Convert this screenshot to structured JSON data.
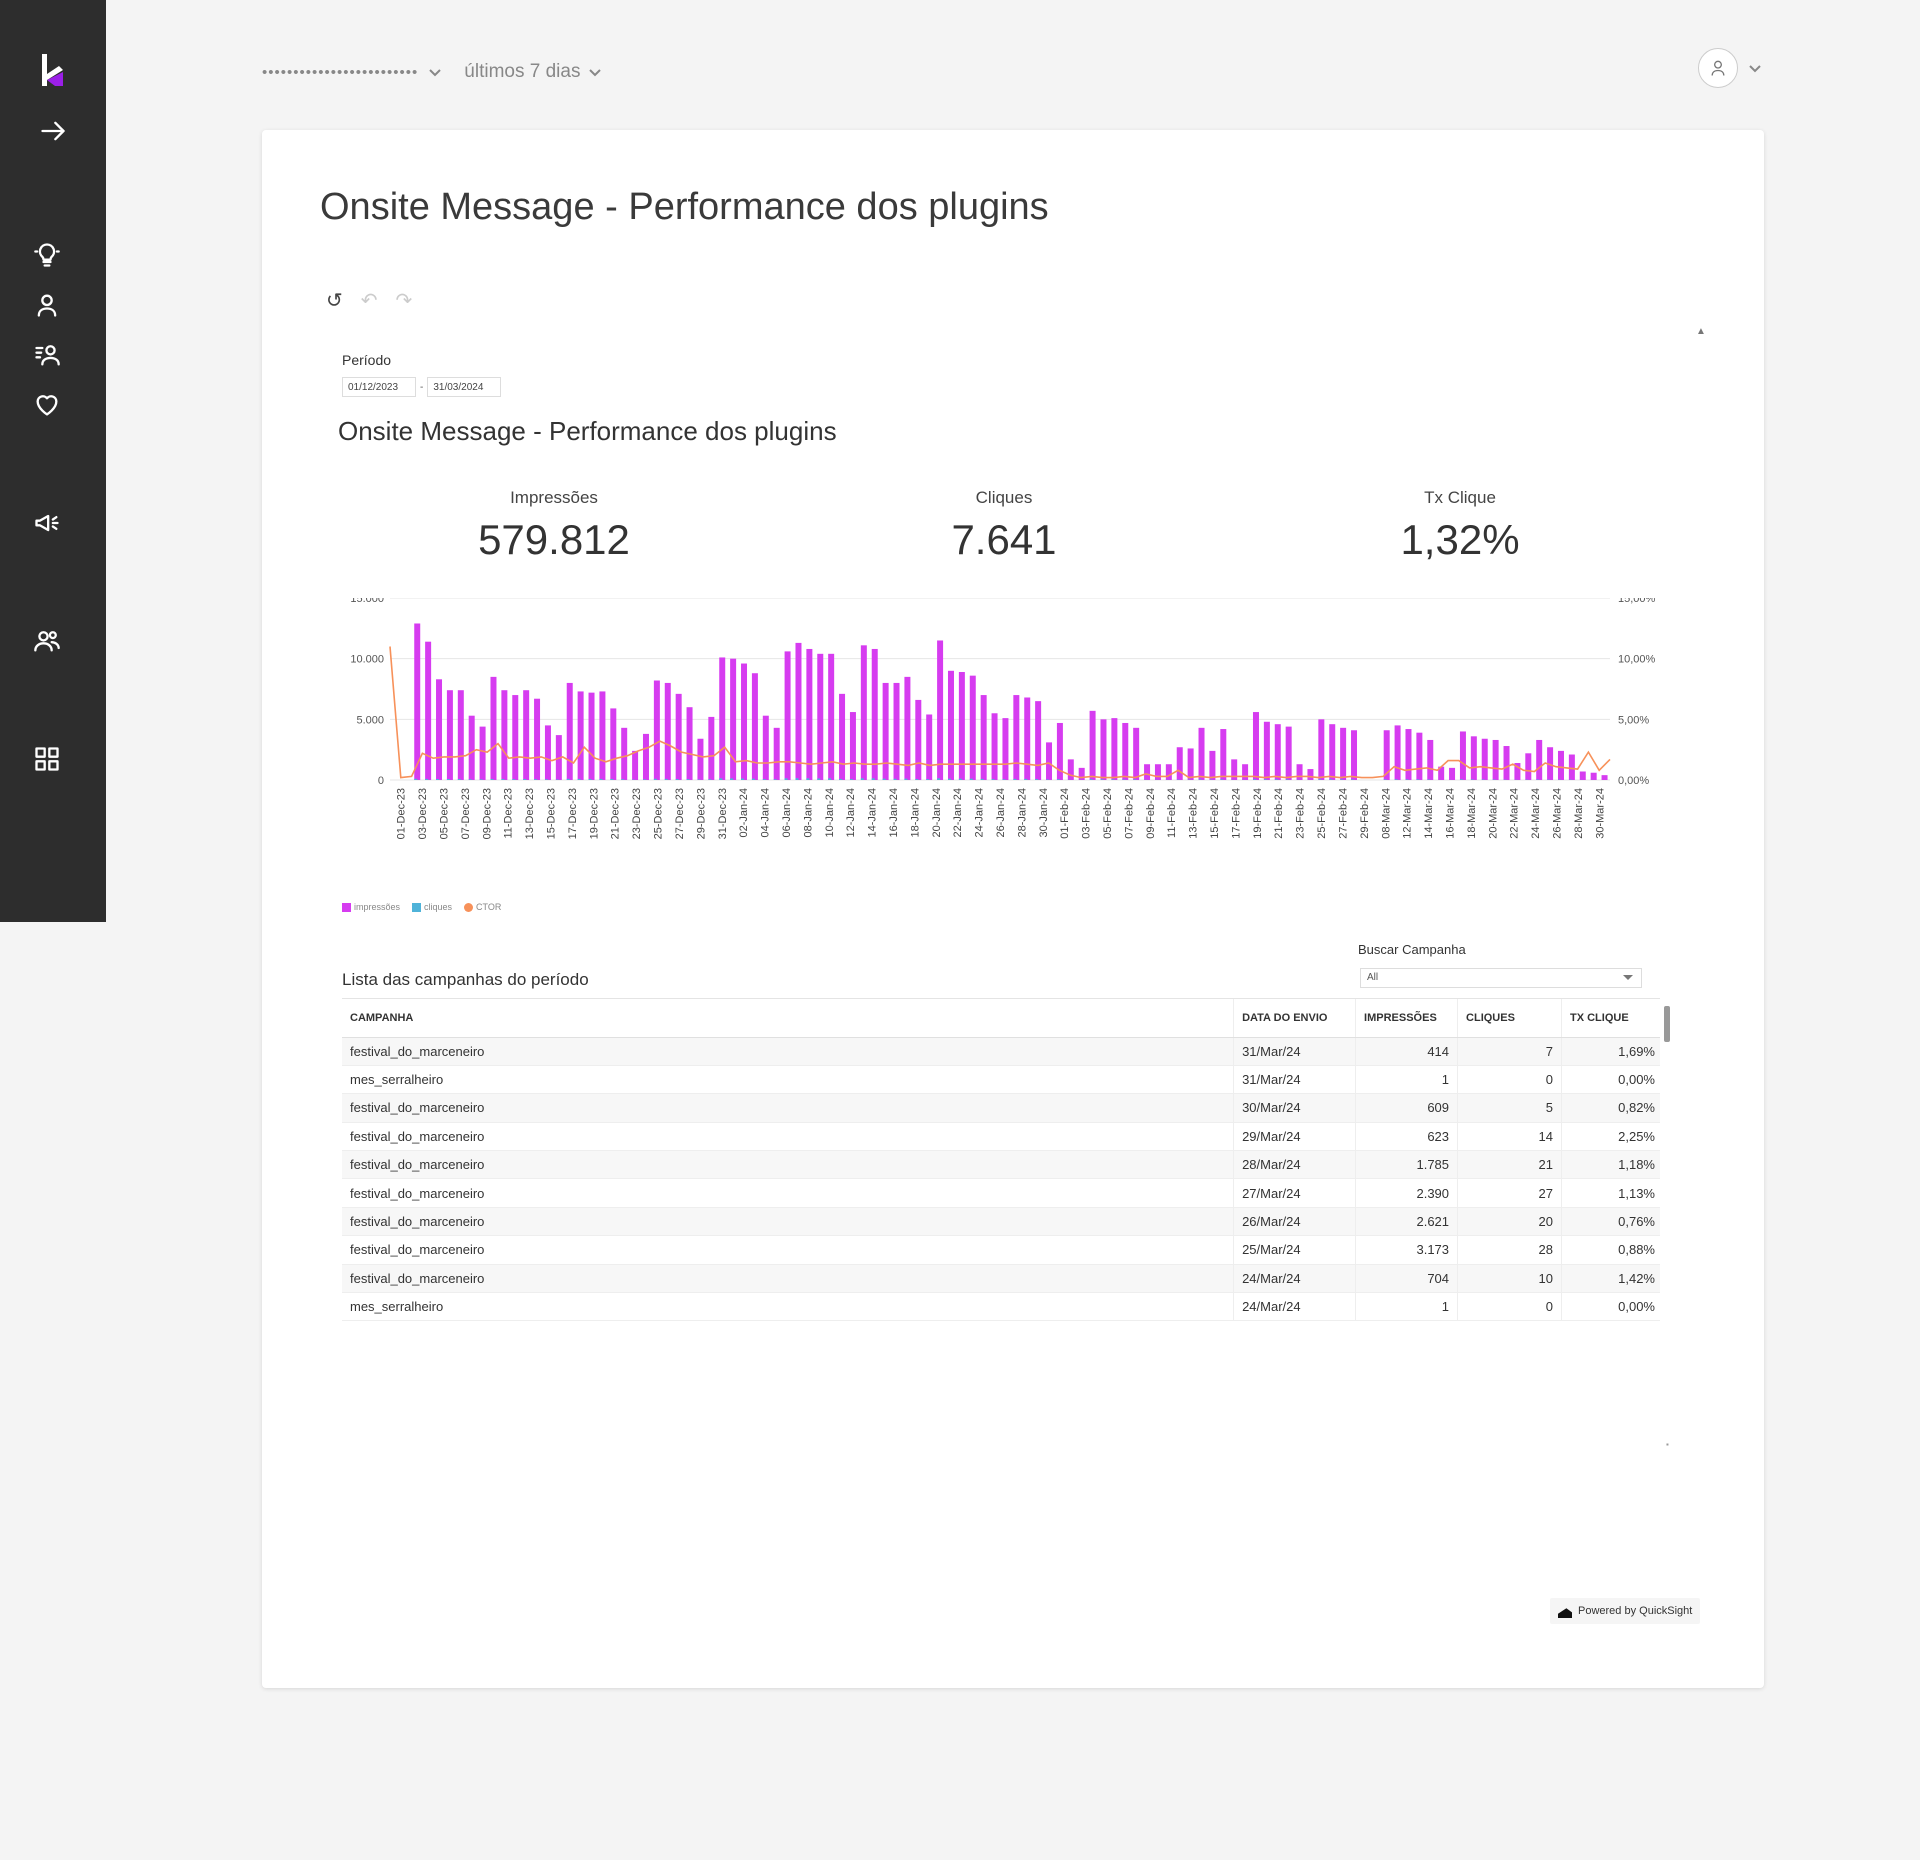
{
  "header": {
    "account_masked": "•••••••••••••••••••••••••",
    "period_select": "últimos 7 dias"
  },
  "dashboard": {
    "page_title": "Onsite Message - Performance dos plugins",
    "periodo_label": "Período",
    "date_from": "01/12/2023",
    "date_sep": "-",
    "date_to": "31/03/2024",
    "section_title": "Onsite Message - Performance dos plugins",
    "kpis": [
      {
        "label": "Impressões",
        "value": "579.812"
      },
      {
        "label": "Cliques",
        "value": "7.641"
      },
      {
        "label": "Tx Clique",
        "value": "1,32%"
      }
    ],
    "legend": [
      {
        "label": "impressões",
        "color": "#d63cf0"
      },
      {
        "label": "cliques",
        "color": "#4fb3d9"
      },
      {
        "label": "CTOR",
        "color": "#f7915a"
      }
    ],
    "buscar_label": "Buscar Campanha",
    "buscar_value": "All",
    "list_title": "Lista das campanhas do período",
    "table": {
      "headers": [
        "CAMPANHA",
        "DATA DO ENVIO",
        "IMPRESSÕES",
        "CLIQUES",
        "TX CLIQUE"
      ],
      "rows": [
        [
          "festival_do_marceneiro",
          "31/Mar/24",
          "414",
          "7",
          "1,69%"
        ],
        [
          "mes_serralheiro",
          "31/Mar/24",
          "1",
          "0",
          "0,00%"
        ],
        [
          "festival_do_marceneiro",
          "30/Mar/24",
          "609",
          "5",
          "0,82%"
        ],
        [
          "festival_do_marceneiro",
          "29/Mar/24",
          "623",
          "14",
          "2,25%"
        ],
        [
          "festival_do_marceneiro",
          "28/Mar/24",
          "1.785",
          "21",
          "1,18%"
        ],
        [
          "festival_do_marceneiro",
          "27/Mar/24",
          "2.390",
          "27",
          "1,13%"
        ],
        [
          "festival_do_marceneiro",
          "26/Mar/24",
          "2.621",
          "20",
          "0,76%"
        ],
        [
          "festival_do_marceneiro",
          "25/Mar/24",
          "3.173",
          "28",
          "0,88%"
        ],
        [
          "festival_do_marceneiro",
          "24/Mar/24",
          "704",
          "10",
          "1,42%"
        ],
        [
          "mes_serralheiro",
          "24/Mar/24",
          "1",
          "0",
          "0,00%"
        ]
      ]
    },
    "powered_by": "Powered by QuickSight"
  },
  "colors": {
    "sidebar": "#2d2d2d",
    "brand_accent": "#9b1fe8",
    "bar": "#d63cf0",
    "clicks": "#4fb3d9",
    "ctor": "#f7915a"
  },
  "icons": [
    "logo-k-icon",
    "arrow-right-icon",
    "lightbulb-icon",
    "user-icon",
    "user-group-icon",
    "heart-icon",
    "megaphone-icon",
    "users-icon",
    "grid-icon",
    "chevron-down-icon",
    "user-avatar-icon",
    "reset-icon",
    "undo-icon",
    "redo-icon"
  ],
  "chart_data": {
    "type": "bar",
    "title": "",
    "y_left_ticks": [
      "0",
      "5.000",
      "10.000",
      "15.000"
    ],
    "y_right_ticks": [
      "0,00%",
      "5,00%",
      "10,00%",
      "15,00%"
    ],
    "ylim": [
      0,
      15000
    ],
    "y2lim": [
      0,
      15
    ],
    "grid": true,
    "legend_position": "bottom-left",
    "x_tick_labels": [
      "01-Dec-23",
      "03-Dec-23",
      "05-Dec-23",
      "07-Dec-23",
      "09-Dec-23",
      "11-Dec-23",
      "13-Dec-23",
      "15-Dec-23",
      "17-Dec-23",
      "19-Dec-23",
      "21-Dec-23",
      "23-Dec-23",
      "25-Dec-23",
      "27-Dec-23",
      "29-Dec-23",
      "31-Dec-23",
      "02-Jan-24",
      "04-Jan-24",
      "06-Jan-24",
      "08-Jan-24",
      "10-Jan-24",
      "12-Jan-24",
      "14-Jan-24",
      "16-Jan-24",
      "18-Jan-24",
      "20-Jan-24",
      "22-Jan-24",
      "24-Jan-24",
      "26-Jan-24",
      "28-Jan-24",
      "30-Jan-24",
      "01-Feb-24",
      "03-Feb-24",
      "05-Feb-24",
      "07-Feb-24",
      "09-Feb-24",
      "11-Feb-24",
      "13-Feb-24",
      "15-Feb-24",
      "17-Feb-24",
      "19-Feb-24",
      "21-Feb-24",
      "23-Feb-24",
      "25-Feb-24",
      "27-Feb-24",
      "29-Feb-24",
      "08-Mar-24",
      "12-Mar-24",
      "14-Mar-24",
      "16-Mar-24",
      "18-Mar-24",
      "20-Mar-24",
      "22-Mar-24",
      "24-Mar-24",
      "26-Mar-24",
      "28-Mar-24",
      "30-Mar-24"
    ],
    "series": [
      {
        "name": "impressões",
        "values": [
          0,
          0,
          12900,
          11400,
          8300,
          7400,
          7400,
          5300,
          4400,
          8500,
          7400,
          7000,
          7400,
          6700,
          4500,
          3700,
          8000,
          7300,
          7200,
          7300,
          5900,
          4300,
          2400,
          3800,
          8200,
          8000,
          7100,
          6000,
          3400,
          5200,
          10100,
          10000,
          9600,
          8800,
          5300,
          4300,
          10600,
          11300,
          10800,
          10400,
          10400,
          7100,
          5600,
          11100,
          10800,
          8000,
          8000,
          8500,
          6600,
          5400,
          11500,
          9000,
          8900,
          8600,
          7000,
          5500,
          5100,
          7000,
          6800,
          6500,
          3100,
          4700,
          1700,
          1000,
          5700,
          5000,
          5100,
          4700,
          4300,
          1300,
          1300,
          1300,
          2700,
          2600,
          4300,
          2400,
          4200,
          1700,
          1300,
          5600,
          4800,
          4600,
          4400,
          1300,
          900,
          5000,
          4600,
          4300,
          4100,
          0,
          0,
          4100,
          4500,
          4200,
          3900,
          3300,
          1100,
          1000,
          4000,
          3600,
          3400,
          3300,
          2800,
          1400,
          2200,
          3300,
          2700,
          2400,
          2100,
          700,
          600,
          400
        ],
        "clicks": [
          0,
          0,
          100,
          90,
          80,
          80,
          80,
          60,
          50,
          80,
          80,
          70,
          80,
          70,
          60,
          40,
          100,
          90,
          80,
          90,
          80,
          60,
          30,
          50,
          100,
          90,
          80,
          70,
          40,
          60,
          140,
          130,
          120,
          110,
          70,
          60,
          140,
          150,
          140,
          130,
          140,
          90,
          70,
          140,
          140,
          110,
          100,
          110,
          80,
          70,
          140,
          110,
          110,
          110,
          90,
          70,
          60,
          90,
          90,
          80,
          40,
          60,
          20,
          10,
          70,
          60,
          60,
          50,
          50,
          20,
          20,
          20,
          30,
          30,
          50,
          30,
          50,
          20,
          20,
          70,
          60,
          60,
          50,
          20,
          10,
          60,
          60,
          50,
          50,
          0,
          0,
          50,
          60,
          50,
          50,
          40,
          10,
          10,
          50,
          40,
          40,
          40,
          30,
          20,
          30,
          40,
          30,
          30,
          30,
          10,
          10,
          0
        ]
      },
      {
        "name": "CTOR",
        "values": [
          11,
          0.2,
          0.3,
          2.2,
          1.8,
          1.9,
          1.9,
          2.0,
          2.5,
          2.3,
          3,
          1.8,
          1.9,
          1.8,
          1.9,
          1.6,
          1.9,
          1.4,
          2.7,
          1.8,
          1.5,
          1.8,
          2.0,
          2.4,
          2.7,
          3.2,
          2.8,
          2.3,
          2.1,
          1.9,
          2.0,
          2.7,
          1.5,
          1.6,
          1.4,
          1.4,
          1.5,
          1.5,
          1.4,
          1.3,
          1.4,
          1.5,
          1.3,
          1.4,
          1.3,
          1.3,
          1.4,
          1.3,
          1.2,
          1.4,
          1.2,
          1.3,
          1.3,
          1.3,
          1.3,
          1.3,
          1.3,
          1.3,
          1.4,
          1.3,
          1.2,
          1.4,
          0.8,
          0.4,
          0.2,
          0.3,
          0.2,
          0.2,
          0.3,
          0.2,
          0.5,
          0.3,
          0.3,
          0.8,
          0.2,
          0.3,
          0.2,
          0.3,
          0.3,
          0.3,
          0.3,
          0.2,
          0.3,
          0.2,
          0.3,
          0.3,
          0.2,
          0.3,
          0.2,
          0.3,
          0.2,
          0.2,
          0.3,
          1.1,
          0.8,
          0.9,
          1.0,
          0.8,
          1.6,
          1.6,
          1.0,
          1.1,
          1.0,
          0.9,
          1.3,
          0.8,
          0.7,
          1.4,
          1.1,
          1.0,
          0.9,
          2.3,
          0.8,
          1.7
        ]
      }
    ]
  }
}
